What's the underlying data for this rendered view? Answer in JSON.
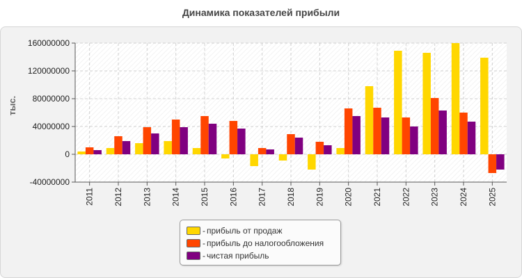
{
  "chart_data": {
    "type": "bar",
    "title": "Динамика показателей прибыли",
    "ylabel": "тыс.",
    "xlabel": "",
    "ylim": [
      -40000000,
      160000000
    ],
    "yticks": [
      160000000,
      120000000,
      80000000,
      40000000,
      0,
      -40000000
    ],
    "ytick_labels": [
      "160000000",
      "120000000",
      "80000000",
      "40000000",
      "0",
      "-40000000"
    ],
    "categories": [
      "2011",
      "2012",
      "2013",
      "2014",
      "2015",
      "2016",
      "2017",
      "2018",
      "2019",
      "2020",
      "2021",
      "2022",
      "2023",
      "2024",
      "2025"
    ],
    "series": [
      {
        "name": "прибыль от продаж",
        "color": "#ffd700",
        "values": [
          4000000,
          9000000,
          16000000,
          19000000,
          9000000,
          -6000000,
          -17000000,
          -9000000,
          -22000000,
          9000000,
          98000000,
          149000000,
          146000000,
          160000000,
          139000000
        ]
      },
      {
        "name": "прибыль до налогообложения",
        "color": "#ff4500",
        "values": [
          10000000,
          26000000,
          39000000,
          50000000,
          55000000,
          48000000,
          9000000,
          29000000,
          18000000,
          66000000,
          67000000,
          53000000,
          81000000,
          60000000,
          -27000000
        ]
      },
      {
        "name": "чистая прибыль",
        "color": "#800080",
        "values": [
          6000000,
          19000000,
          30000000,
          39000000,
          44000000,
          37000000,
          7000000,
          24000000,
          13000000,
          55000000,
          53000000,
          40000000,
          63000000,
          47000000,
          -22000000
        ]
      }
    ],
    "legend_prefix": "-",
    "legend_position": "bottom-center",
    "grid": true
  }
}
